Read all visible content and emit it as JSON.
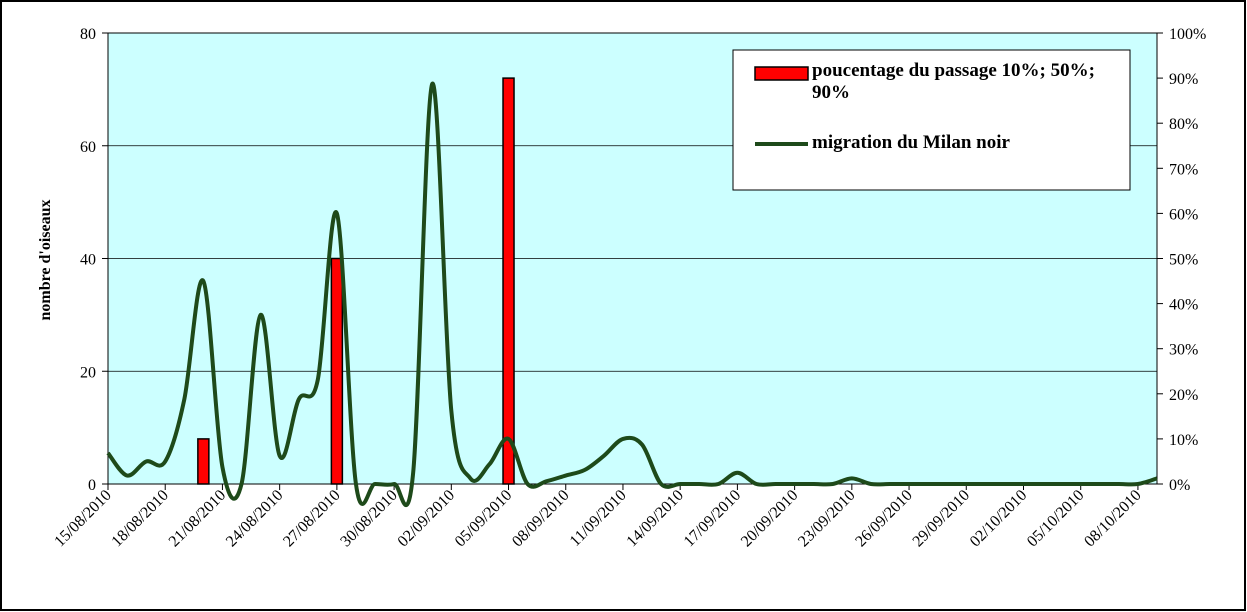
{
  "chart_data": {
    "type": "bar-line",
    "ylabel": "nombre d'oiseaux",
    "categories": [
      "15/08/2010",
      null,
      null,
      "18/08/2010",
      null,
      null,
      "21/08/2010",
      null,
      null,
      "24/08/2010",
      null,
      null,
      "27/08/2010",
      null,
      null,
      "30/08/2010",
      null,
      null,
      "02/09/2010",
      null,
      null,
      "05/09/2010",
      null,
      null,
      "08/09/2010",
      null,
      null,
      "11/09/2010",
      null,
      null,
      "14/09/2010",
      null,
      null,
      "17/09/2010",
      null,
      null,
      "20/09/2010",
      null,
      null,
      "23/09/2010",
      null,
      null,
      "26/09/2010",
      null,
      null,
      "29/09/2010",
      null,
      null,
      "02/10/2010",
      null,
      null,
      "05/10/2010",
      null,
      null,
      "08/10/2010",
      null
    ],
    "series": [
      {
        "name": "poucentage du passage 10%; 50%; 90%",
        "type": "bar",
        "axis": "y2",
        "color": "#ff0000",
        "values": [
          null,
          null,
          null,
          null,
          null,
          10,
          null,
          null,
          null,
          null,
          null,
          null,
          50,
          null,
          null,
          null,
          null,
          null,
          null,
          null,
          null,
          90,
          null,
          null,
          null,
          null,
          null,
          null,
          null,
          null,
          null,
          null,
          null,
          null,
          null,
          null,
          null,
          null,
          null,
          null,
          null,
          null,
          null,
          null,
          null,
          null,
          null,
          null,
          null,
          null,
          null,
          null,
          null,
          null,
          null,
          null
        ]
      },
      {
        "name": "migration du Milan noir",
        "type": "line",
        "color": "#1e4a1a",
        "values": [
          5.5,
          1.5,
          4,
          4,
          15,
          36,
          3,
          0,
          30,
          5,
          15,
          18.5,
          48,
          0,
          0,
          0,
          2,
          71,
          13,
          1,
          3.5,
          8,
          0,
          0.5,
          1.5,
          2.5,
          5,
          8,
          7,
          0,
          0,
          0,
          0,
          2,
          0,
          0,
          0,
          0,
          0,
          1,
          0,
          0,
          0,
          0,
          0,
          0,
          0,
          0,
          0,
          0,
          0,
          0,
          0,
          0,
          0,
          1
        ]
      }
    ],
    "ylim": [
      0,
      80
    ],
    "yticks": [
      0,
      20,
      40,
      60,
      80
    ],
    "y2lim": [
      0,
      100
    ],
    "y2ticks": [
      {
        "value": 0,
        "label": "0%"
      },
      {
        "value": 10,
        "label": "10%"
      },
      {
        "value": 20,
        "label": "20%"
      },
      {
        "value": 30,
        "label": "30%"
      },
      {
        "value": 40,
        "label": "40%"
      },
      {
        "value": 50,
        "label": "50%"
      },
      {
        "value": 60,
        "label": "60%"
      },
      {
        "value": 70,
        "label": "70%"
      },
      {
        "value": 80,
        "label": "80%"
      },
      {
        "value": 90,
        "label": "90%"
      },
      {
        "value": 100,
        "label": "100%"
      }
    ],
    "grid": true,
    "legend": "top-right",
    "background": "#ccffff"
  }
}
